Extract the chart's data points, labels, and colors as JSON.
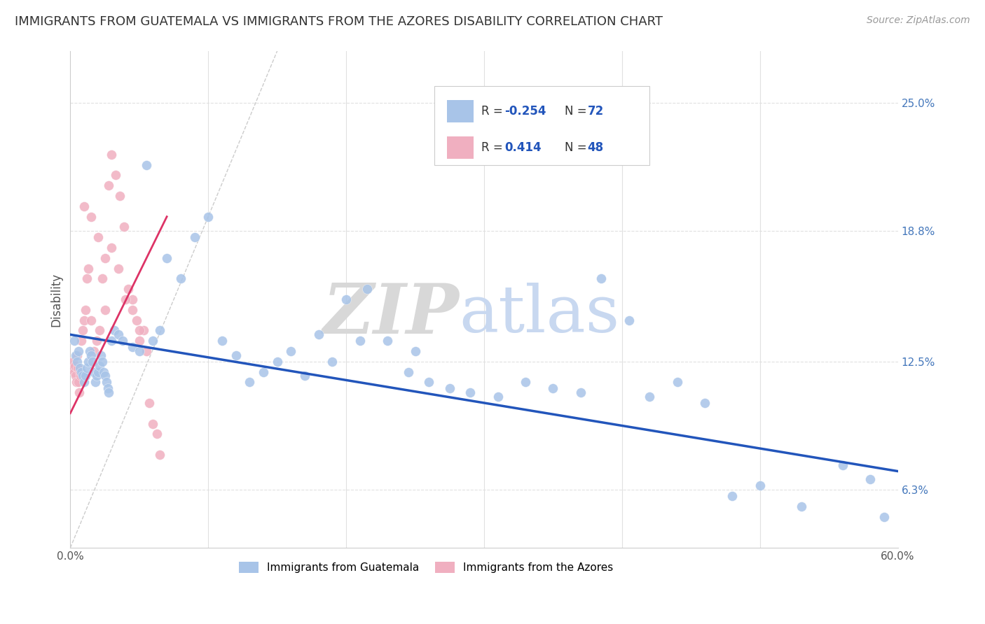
{
  "title": "IMMIGRANTS FROM GUATEMALA VS IMMIGRANTS FROM THE AZORES DISABILITY CORRELATION CHART",
  "source": "Source: ZipAtlas.com",
  "ylabel": "Disability",
  "y_ticks": [
    6.3,
    12.5,
    18.8,
    25.0
  ],
  "y_tick_labels": [
    "6.3%",
    "12.5%",
    "18.8%",
    "25.0%"
  ],
  "x_ticks": [
    0.0,
    10.0,
    20.0,
    30.0,
    40.0,
    50.0,
    60.0
  ],
  "xlim": [
    0.0,
    60.0
  ],
  "ylim": [
    3.5,
    27.5
  ],
  "blue_scatter_x": [
    0.3,
    0.4,
    0.5,
    0.6,
    0.7,
    0.8,
    0.9,
    1.0,
    1.1,
    1.2,
    1.3,
    1.4,
    1.5,
    1.6,
    1.7,
    1.8,
    1.9,
    2.0,
    2.1,
    2.2,
    2.3,
    2.4,
    2.5,
    2.6,
    2.7,
    2.8,
    3.0,
    3.2,
    3.5,
    3.8,
    4.5,
    5.0,
    5.5,
    6.0,
    6.5,
    7.0,
    8.0,
    9.0,
    10.0,
    11.0,
    12.0,
    13.0,
    14.0,
    15.0,
    16.0,
    17.0,
    18.0,
    19.0,
    20.0,
    21.5,
    23.0,
    24.5,
    26.0,
    27.5,
    29.0,
    31.0,
    33.0,
    35.0,
    37.0,
    38.5,
    40.5,
    42.0,
    44.0,
    46.0,
    48.0,
    50.0,
    53.0,
    56.0,
    58.0,
    59.0,
    21.0,
    25.0
  ],
  "blue_scatter_y": [
    13.5,
    12.8,
    12.5,
    13.0,
    12.2,
    12.0,
    11.8,
    11.5,
    11.8,
    12.2,
    12.5,
    13.0,
    12.8,
    12.5,
    12.0,
    11.5,
    11.8,
    12.0,
    12.3,
    12.8,
    12.5,
    12.0,
    11.8,
    11.5,
    11.2,
    11.0,
    13.5,
    14.0,
    13.8,
    13.5,
    13.2,
    13.0,
    22.0,
    13.5,
    14.0,
    17.5,
    16.5,
    18.5,
    19.5,
    13.5,
    12.8,
    11.5,
    12.0,
    12.5,
    13.0,
    11.8,
    13.8,
    12.5,
    15.5,
    16.0,
    13.5,
    12.0,
    11.5,
    11.2,
    11.0,
    10.8,
    11.5,
    11.2,
    11.0,
    16.5,
    14.5,
    10.8,
    11.5,
    10.5,
    6.0,
    6.5,
    5.5,
    7.5,
    6.8,
    5.0,
    13.5,
    13.0
  ],
  "pink_scatter_x": [
    0.2,
    0.25,
    0.3,
    0.35,
    0.4,
    0.45,
    0.5,
    0.55,
    0.6,
    0.65,
    0.7,
    0.75,
    0.8,
    0.9,
    1.0,
    1.1,
    1.2,
    1.3,
    1.5,
    1.7,
    1.9,
    2.1,
    2.3,
    2.5,
    2.8,
    3.0,
    3.3,
    3.6,
    3.9,
    4.2,
    4.5,
    4.8,
    5.0,
    5.3,
    5.7,
    6.0,
    6.3,
    6.5,
    1.0,
    1.5,
    2.0,
    2.5,
    3.0,
    3.5,
    4.0,
    4.5,
    5.0,
    5.5
  ],
  "pink_scatter_y": [
    12.5,
    12.2,
    12.0,
    12.3,
    11.8,
    11.5,
    12.8,
    12.2,
    11.5,
    11.0,
    12.0,
    11.8,
    13.5,
    14.0,
    14.5,
    15.0,
    16.5,
    17.0,
    14.5,
    13.0,
    13.5,
    14.0,
    16.5,
    15.0,
    21.0,
    22.5,
    21.5,
    20.5,
    19.0,
    16.0,
    15.5,
    14.5,
    13.5,
    14.0,
    10.5,
    9.5,
    9.0,
    8.0,
    20.0,
    19.5,
    18.5,
    17.5,
    18.0,
    17.0,
    15.5,
    15.0,
    14.0,
    13.0
  ],
  "blue_color": "#a8c4e8",
  "pink_color": "#f0afc0",
  "blue_line_color": "#2255bb",
  "pink_line_color": "#dd3366",
  "blue_line_x": [
    0.0,
    60.0
  ],
  "blue_line_y": [
    13.8,
    7.2
  ],
  "pink_line_x": [
    0.0,
    7.0
  ],
  "pink_line_y": [
    10.0,
    19.5
  ],
  "ref_line_x": [
    0.0,
    15.0
  ],
  "ref_line_y": [
    3.5,
    27.5
  ],
  "watermark_zip": "ZIP",
  "watermark_atlas": "atlas",
  "watermark_zip_color": "#d8d8d8",
  "watermark_atlas_color": "#c8d8f0",
  "grid_color": "#e0e0e0",
  "right_axis_color": "#4477bb",
  "legend_r1_label": "R = ",
  "legend_r1_val": "-0.254",
  "legend_n1_label": "N = ",
  "legend_n1_val": "72",
  "legend_r2_label": "R =  ",
  "legend_r2_val": "0.414",
  "legend_n2_label": "N = ",
  "legend_n2_val": "48",
  "bottom_legend_1": "Immigrants from Guatemala",
  "bottom_legend_2": "Immigrants from the Azores",
  "title_fontsize": 13,
  "source_fontsize": 10,
  "legend_fontsize": 12,
  "scatter_size": 100
}
